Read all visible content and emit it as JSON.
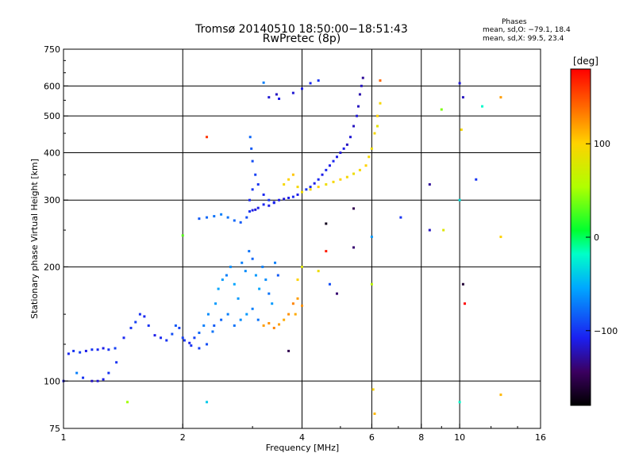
{
  "header": {
    "title_line1": "Tromsø 20140510 18:50:00−18:51:43",
    "title_line2": "RwPretec (8p)",
    "stats_title": "Phases",
    "stats_line1": "mean, sd,O: −79.1, 18.4",
    "stats_line2": "mean, sd,X: 99.5, 23.4"
  },
  "colorbar": {
    "unit_label": "[deg]",
    "ticks": [
      {
        "value": 100,
        "label": "100"
      },
      {
        "value": 0,
        "label": "0"
      },
      {
        "value": -100,
        "label": "−100"
      }
    ],
    "range": [
      -180,
      180
    ]
  },
  "chart_data": {
    "type": "scatter",
    "title": "Tromsø 20140510 18:50:00−18:51:43",
    "subtitle": "RwPretec (8p)",
    "xlabel": "Frequency [MHz]",
    "ylabel": "Stationary phase Virtual Height [km]",
    "xscale": "log",
    "yscale": "log",
    "xlim": [
      1,
      16
    ],
    "ylim": [
      75,
      750
    ],
    "xticks": [
      1,
      2,
      4,
      6,
      8,
      10,
      16
    ],
    "xtick_labels": [
      "1",
      "2",
      "4",
      "6",
      "8",
      "10",
      "16"
    ],
    "yticks": [
      75,
      100,
      200,
      300,
      400,
      500,
      600,
      750
    ],
    "ytick_labels": [
      "75",
      "100",
      "200",
      "300",
      "400",
      "500",
      "600",
      "750"
    ],
    "grid_x": [
      2,
      4,
      6,
      8,
      10
    ],
    "grid_y": [
      100,
      200,
      300,
      400,
      500,
      600
    ],
    "color_scale": "phase (deg), colorbar from black/purple (−180) through blue (−100), cyan, green (0), yellow (100), to red (180)",
    "series": [
      {
        "name": "O",
        "phase_mean": -79.1,
        "phase_sd": 18.4,
        "points": [
          [
            1.0,
            100,
            -110
          ],
          [
            1.03,
            118,
            -105
          ],
          [
            1.06,
            120,
            -100
          ],
          [
            1.1,
            119,
            -95
          ],
          [
            1.14,
            120,
            -110
          ],
          [
            1.18,
            121,
            -100
          ],
          [
            1.22,
            121,
            -105
          ],
          [
            1.26,
            122,
            -110
          ],
          [
            1.3,
            121,
            -100
          ],
          [
            1.35,
            122,
            -95
          ],
          [
            1.08,
            105,
            -70
          ],
          [
            1.12,
            102,
            -100
          ],
          [
            1.18,
            100,
            -120
          ],
          [
            1.22,
            100,
            -115
          ],
          [
            1.26,
            101,
            -110
          ],
          [
            1.3,
            105,
            -100
          ],
          [
            1.36,
            112,
            -100
          ],
          [
            1.42,
            130,
            -105
          ],
          [
            1.48,
            138,
            -100
          ],
          [
            1.52,
            143,
            -95
          ],
          [
            1.56,
            150,
            -100
          ],
          [
            1.6,
            148,
            -105
          ],
          [
            1.64,
            140,
            -100
          ],
          [
            1.7,
            132,
            -110
          ],
          [
            1.76,
            130,
            -105
          ],
          [
            1.82,
            128,
            -100
          ],
          [
            1.88,
            133,
            -90
          ],
          [
            1.92,
            140,
            -85
          ],
          [
            1.96,
            138,
            -95
          ],
          [
            2.02,
            128,
            -100
          ],
          [
            2.08,
            126,
            -105
          ],
          [
            2.14,
            130,
            -95
          ],
          [
            2.2,
            134,
            -80
          ],
          [
            2.26,
            140,
            -70
          ],
          [
            2.32,
            150,
            -65
          ],
          [
            2.38,
            135,
            -75
          ],
          [
            2.42,
            160,
            -60
          ],
          [
            2.46,
            175,
            -55
          ],
          [
            2.52,
            185,
            -60
          ],
          [
            2.58,
            190,
            -70
          ],
          [
            2.64,
            200,
            -65
          ],
          [
            2.7,
            180,
            -55
          ],
          [
            2.76,
            165,
            -60
          ],
          [
            2.82,
            205,
            -70
          ],
          [
            2.88,
            195,
            -65
          ],
          [
            2.94,
            220,
            -75
          ],
          [
            3.0,
            210,
            -80
          ],
          [
            3.06,
            190,
            -60
          ],
          [
            3.12,
            175,
            -55
          ],
          [
            3.18,
            200,
            -70
          ],
          [
            3.24,
            185,
            -65
          ],
          [
            3.3,
            170,
            -75
          ],
          [
            3.36,
            160,
            -60
          ],
          [
            3.42,
            205,
            -70
          ],
          [
            3.48,
            190,
            -85
          ],
          [
            2.6,
            150,
            -70
          ],
          [
            2.7,
            140,
            -75
          ],
          [
            2.8,
            145,
            -65
          ],
          [
            2.9,
            150,
            -60
          ],
          [
            3.0,
            155,
            -70
          ],
          [
            3.1,
            145,
            -75
          ],
          [
            2.5,
            145,
            -80
          ],
          [
            2.4,
            140,
            -85
          ],
          [
            2.3,
            125,
            -90
          ],
          [
            2.2,
            122,
            -95
          ],
          [
            2.1,
            124,
            -100
          ],
          [
            2.0,
            130,
            -95
          ],
          [
            2.2,
            268,
            -85
          ],
          [
            2.3,
            270,
            -80
          ],
          [
            2.4,
            272,
            -75
          ],
          [
            2.5,
            275,
            -70
          ],
          [
            2.6,
            270,
            -75
          ],
          [
            2.7,
            265,
            -80
          ],
          [
            2.8,
            262,
            -85
          ],
          [
            2.9,
            270,
            -90
          ],
          [
            2.95,
            280,
            -100
          ],
          [
            3.0,
            282,
            -110
          ],
          [
            3.05,
            283,
            -115
          ],
          [
            3.1,
            286,
            -110
          ],
          [
            3.2,
            292,
            -105
          ],
          [
            3.3,
            290,
            -110
          ],
          [
            3.4,
            296,
            -115
          ],
          [
            3.5,
            300,
            -110
          ],
          [
            3.6,
            302,
            -115
          ],
          [
            3.7,
            304,
            -110
          ],
          [
            3.8,
            306,
            -105
          ],
          [
            3.9,
            310,
            -110
          ],
          [
            4.0,
            315,
            -105
          ],
          [
            4.1,
            320,
            -100
          ],
          [
            4.2,
            325,
            -105
          ],
          [
            4.3,
            332,
            -110
          ],
          [
            4.4,
            340,
            -105
          ],
          [
            4.5,
            350,
            -110
          ],
          [
            4.6,
            360,
            -105
          ],
          [
            4.7,
            370,
            -110
          ],
          [
            4.8,
            380,
            -105
          ],
          [
            4.9,
            390,
            -110
          ],
          [
            5.0,
            400,
            -115
          ],
          [
            5.1,
            410,
            -110
          ],
          [
            5.2,
            420,
            -120
          ],
          [
            5.3,
            440,
            -115
          ],
          [
            5.4,
            470,
            -120
          ],
          [
            5.5,
            500,
            -115
          ],
          [
            5.55,
            530,
            -120
          ],
          [
            5.6,
            570,
            -125
          ],
          [
            5.65,
            600,
            -120
          ],
          [
            5.7,
            630,
            -130
          ],
          [
            2.95,
            300,
            -105
          ],
          [
            3.0,
            320,
            -100
          ],
          [
            3.05,
            350,
            -95
          ],
          [
            3.0,
            380,
            -90
          ],
          [
            2.98,
            410,
            -85
          ],
          [
            2.96,
            440,
            -80
          ],
          [
            3.1,
            330,
            -100
          ],
          [
            3.2,
            310,
            -105
          ],
          [
            3.3,
            300,
            -100
          ],
          [
            3.4,
            295,
            -105
          ],
          [
            3.3,
            560,
            -115
          ],
          [
            3.45,
            570,
            -120
          ],
          [
            3.5,
            555,
            -110
          ],
          [
            3.8,
            575,
            -115
          ],
          [
            4.0,
            590,
            -110
          ],
          [
            4.2,
            610,
            -105
          ],
          [
            4.4,
            620,
            -100
          ],
          [
            3.2,
            612,
            -70
          ],
          [
            10.0,
            610,
            -115
          ],
          [
            10.2,
            560,
            -120
          ]
        ]
      },
      {
        "name": "X",
        "phase_mean": 99.5,
        "phase_sd": 23.4,
        "points": [
          [
            3.2,
            140,
            120
          ],
          [
            3.3,
            142,
            125
          ],
          [
            3.4,
            138,
            130
          ],
          [
            3.5,
            141,
            120
          ],
          [
            3.6,
            145,
            115
          ],
          [
            3.7,
            150,
            125
          ],
          [
            3.8,
            160,
            130
          ],
          [
            3.9,
            165,
            120
          ],
          [
            4.0,
            158,
            125
          ],
          [
            3.85,
            150,
            115
          ],
          [
            3.6,
            330,
            95
          ],
          [
            3.7,
            340,
            100
          ],
          [
            3.8,
            350,
            105
          ],
          [
            3.9,
            325,
            95
          ],
          [
            4.0,
            315,
            90
          ],
          [
            4.2,
            320,
            95
          ],
          [
            4.4,
            325,
            100
          ],
          [
            4.6,
            330,
            90
          ],
          [
            4.8,
            335,
            95
          ],
          [
            5.0,
            340,
            100
          ],
          [
            5.2,
            345,
            95
          ],
          [
            5.4,
            352,
            90
          ],
          [
            5.6,
            360,
            95
          ],
          [
            5.8,
            370,
            100
          ],
          [
            5.9,
            390,
            95
          ],
          [
            6.0,
            410,
            90
          ],
          [
            6.1,
            450,
            95
          ],
          [
            6.2,
            500,
            100
          ],
          [
            6.3,
            540,
            95
          ],
          [
            6.2,
            470,
            85
          ],
          [
            4.0,
            200,
            80
          ],
          [
            3.9,
            185,
            100
          ],
          [
            6.3,
            620,
            140
          ],
          [
            12.7,
            560,
            120
          ],
          [
            12.7,
            240,
            100
          ],
          [
            12.7,
            92,
            110
          ],
          [
            9.1,
            250,
            80
          ],
          [
            10.1,
            460,
            95
          ],
          [
            4.4,
            195,
            90
          ]
        ]
      },
      {
        "name": "scattered",
        "phase_mean": null,
        "phase_sd": null,
        "points": [
          [
            2.3,
            440,
            160
          ],
          [
            2.3,
            88,
            -40
          ],
          [
            2.0,
            242,
            30
          ],
          [
            1.45,
            88,
            50
          ],
          [
            4.6,
            260,
            -170
          ],
          [
            4.6,
            220,
            170
          ],
          [
            5.4,
            285,
            -150
          ],
          [
            5.4,
            225,
            -140
          ],
          [
            6.0,
            180,
            60
          ],
          [
            6.0,
            240,
            -60
          ],
          [
            6.05,
            95,
            100
          ],
          [
            6.1,
            82,
            110
          ],
          [
            7.1,
            270,
            -100
          ],
          [
            8.4,
            250,
            -120
          ],
          [
            8.4,
            330,
            -130
          ],
          [
            9.0,
            520,
            40
          ],
          [
            10.0,
            300,
            -30
          ],
          [
            10.2,
            180,
            -160
          ],
          [
            10.3,
            160,
            180
          ],
          [
            11.0,
            340,
            -100
          ],
          [
            11.4,
            530,
            -20
          ],
          [
            4.9,
            170,
            -140
          ],
          [
            4.7,
            180,
            -90
          ],
          [
            3.7,
            120,
            -150
          ],
          [
            10.0,
            88,
            -20
          ]
        ]
      }
    ]
  }
}
